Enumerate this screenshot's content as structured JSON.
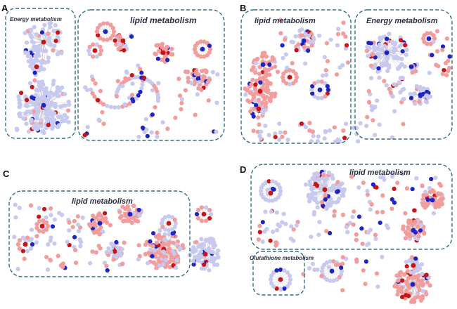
{
  "colors": {
    "frame": "#2f6f80",
    "node_light_blue": "#c8c9ee",
    "node_pink": "#f29c9c",
    "node_dark_blue": "#1d23c4",
    "node_red": "#c81414",
    "edge": "#b9b9c9"
  },
  "panels": [
    {
      "letter": "A",
      "clusters": [
        {
          "label": "Energy metabolism"
        },
        {
          "label": "lipid metabolism"
        }
      ]
    },
    {
      "letter": "B",
      "clusters": [
        {
          "label": "lipid metabolism"
        },
        {
          "label": "Energy metabolism"
        }
      ]
    },
    {
      "letter": "C",
      "clusters": [
        {
          "label": "lipid metabolism"
        }
      ]
    },
    {
      "letter": "D",
      "clusters": [
        {
          "label": "lipid metabolism"
        },
        {
          "label": "Glutathione metabolism"
        }
      ]
    }
  ]
}
